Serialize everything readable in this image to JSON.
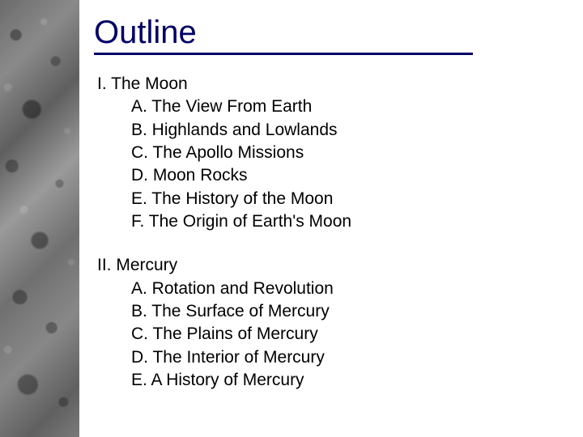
{
  "title": "Outline",
  "colors": {
    "title_color": "#000066",
    "underline_color": "#000066",
    "body_text": "#000000",
    "background": "#ffffff"
  },
  "typography": {
    "title_fontsize": 40,
    "body_fontsize": 21,
    "font_family": "Arial"
  },
  "sections": [
    {
      "roman": "I. The Moon",
      "items": [
        "A. The View From Earth",
        "B. Highlands and Lowlands",
        "C. The Apollo Missions",
        "D. Moon Rocks",
        "E. The History of the Moon",
        "F. The Origin of Earth's Moon"
      ]
    },
    {
      "roman": "II. Mercury",
      "items": [
        "A. Rotation and Revolution",
        "B. The Surface of Mercury",
        "C. The Plains of Mercury",
        "D. The Interior of Mercury",
        "E. A History of Mercury"
      ]
    }
  ]
}
